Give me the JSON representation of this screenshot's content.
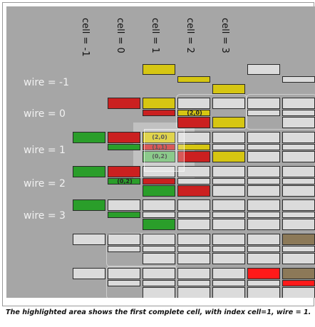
{
  "diagram": {
    "columns": [
      {
        "label": "cell = -1"
      },
      {
        "label": "cell = 0"
      },
      {
        "label": "cell = 1"
      },
      {
        "label": "cell = 2"
      },
      {
        "label": "cell = 3"
      }
    ],
    "wires": [
      {
        "label": "wire = -1"
      },
      {
        "label": "wire = 0"
      },
      {
        "label": "wire = 1"
      },
      {
        "label": "wire = 2"
      },
      {
        "label": "wire = 3"
      }
    ],
    "index_labels": [
      "(2,0)",
      "(2,0)",
      "(1,1)",
      "(0,2)",
      "(0,2)"
    ],
    "colors": {
      "background": "#a6a6a6",
      "green": "#2fae2f",
      "light_green": "#6fcb6f",
      "red": "#e02424",
      "yellow": "#ecdb14",
      "white": "#f2f2f2",
      "brown": "#9b8562"
    }
  },
  "caption": "The highlighted area shows the first complete cell, with index cell=1, wire = 1."
}
